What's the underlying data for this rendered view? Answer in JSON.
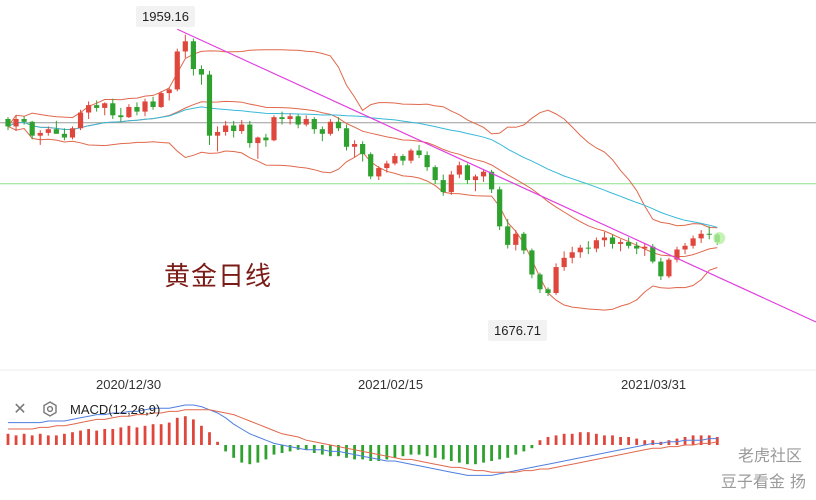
{
  "title": "黄金日线",
  "colors": {
    "up": "#e0473c",
    "down": "#2ea12e",
    "band": "#e0684c",
    "ma": "#36b9d8",
    "trend": "#e040e0",
    "dif": "#4f7fe0",
    "dea": "#e0684c"
  },
  "annotations": {
    "high": "1959.16",
    "low": "1676.71"
  },
  "indicator": {
    "label": "MACD(12,26,9)",
    "close_icon": "close-icon",
    "settings_icon": "gear-icon"
  },
  "watermark": {
    "line1": "老虎社区",
    "line2": "豆子看金 扬"
  },
  "chart_data": {
    "type": "candlestick",
    "title": "黄金日线",
    "x_ticks": [
      "2020/12/30",
      "2021/02/15",
      "2021/03/31"
    ],
    "price_annotations": [
      {
        "label": "1959.16",
        "value": 1959.16
      },
      {
        "label": "1676.71",
        "value": 1676.71
      }
    ],
    "horizontal_lines": [
      1864,
      1798
    ],
    "ylim": [
      1640,
      1975
    ],
    "candles": [
      [
        1868,
        1870,
        1856,
        1860
      ],
      [
        1860,
        1872,
        1855,
        1868
      ],
      [
        1868,
        1871,
        1862,
        1865
      ],
      [
        1865,
        1866,
        1846,
        1850
      ],
      [
        1850,
        1856,
        1840,
        1853
      ],
      [
        1853,
        1860,
        1850,
        1857
      ],
      [
        1857,
        1866,
        1854,
        1852
      ],
      [
        1852,
        1858,
        1845,
        1848
      ],
      [
        1848,
        1860,
        1846,
        1858
      ],
      [
        1858,
        1878,
        1856,
        1875
      ],
      [
        1875,
        1887,
        1868,
        1883
      ],
      [
        1883,
        1888,
        1876,
        1880
      ],
      [
        1880,
        1886,
        1872,
        1885
      ],
      [
        1885,
        1890,
        1868,
        1872
      ],
      [
        1872,
        1880,
        1865,
        1870
      ],
      [
        1870,
        1884,
        1869,
        1881
      ],
      [
        1881,
        1886,
        1872,
        1876
      ],
      [
        1876,
        1890,
        1871,
        1887
      ],
      [
        1887,
        1892,
        1878,
        1881
      ],
      [
        1881,
        1898,
        1880,
        1896
      ],
      [
        1896,
        1902,
        1888,
        1900
      ],
      [
        1900,
        1944,
        1898,
        1941
      ],
      [
        1941,
        1959.16,
        1934,
        1952
      ],
      [
        1952,
        1955,
        1915,
        1922
      ],
      [
        1922,
        1926,
        1905,
        1916
      ],
      [
        1916,
        1920,
        1840,
        1850
      ],
      [
        1850,
        1860,
        1833,
        1854
      ],
      [
        1854,
        1866,
        1850,
        1861
      ],
      [
        1861,
        1866,
        1848,
        1855
      ],
      [
        1855,
        1867,
        1852,
        1862
      ],
      [
        1862,
        1866,
        1837,
        1842
      ],
      [
        1842,
        1849,
        1825,
        1848
      ],
      [
        1848,
        1852,
        1838,
        1845
      ],
      [
        1845,
        1872,
        1844,
        1870
      ],
      [
        1870,
        1876,
        1862,
        1868
      ],
      [
        1868,
        1874,
        1862,
        1871
      ],
      [
        1871,
        1873,
        1858,
        1862
      ],
      [
        1862,
        1872,
        1860,
        1868
      ],
      [
        1868,
        1870,
        1852,
        1857
      ],
      [
        1857,
        1860,
        1844,
        1852
      ],
      [
        1852,
        1868,
        1850,
        1865
      ],
      [
        1865,
        1870,
        1855,
        1858
      ],
      [
        1858,
        1862,
        1834,
        1838
      ],
      [
        1838,
        1845,
        1827,
        1841
      ],
      [
        1841,
        1844,
        1822,
        1830
      ],
      [
        1830,
        1832,
        1803,
        1806
      ],
      [
        1806,
        1817,
        1802,
        1815
      ],
      [
        1815,
        1823,
        1810,
        1820
      ],
      [
        1820,
        1831,
        1818,
        1828
      ],
      [
        1828,
        1830,
        1818,
        1823
      ],
      [
        1823,
        1836,
        1820,
        1834
      ],
      [
        1834,
        1840,
        1826,
        1829
      ],
      [
        1829,
        1833,
        1812,
        1816
      ],
      [
        1816,
        1818,
        1798,
        1802
      ],
      [
        1802,
        1808,
        1785,
        1789
      ],
      [
        1789,
        1812,
        1786,
        1808
      ],
      [
        1808,
        1822,
        1804,
        1818
      ],
      [
        1818,
        1820,
        1798,
        1802
      ],
      [
        1802,
        1808,
        1790,
        1806
      ],
      [
        1806,
        1814,
        1800,
        1811
      ],
      [
        1811,
        1813,
        1788,
        1792
      ],
      [
        1792,
        1795,
        1748,
        1752
      ],
      [
        1752,
        1760,
        1728,
        1732
      ],
      [
        1732,
        1748,
        1726,
        1744
      ],
      [
        1744,
        1746,
        1722,
        1726
      ],
      [
        1726,
        1728,
        1696,
        1700
      ],
      [
        1700,
        1702,
        1680,
        1684
      ],
      [
        1684,
        1686,
        1676.71,
        1680
      ],
      [
        1680,
        1712,
        1678,
        1708
      ],
      [
        1708,
        1725,
        1704,
        1718
      ],
      [
        1718,
        1730,
        1712,
        1724
      ],
      [
        1724,
        1732,
        1718,
        1729
      ],
      [
        1729,
        1736,
        1722,
        1728
      ],
      [
        1728,
        1740,
        1724,
        1737
      ],
      [
        1737,
        1746,
        1730,
        1740
      ],
      [
        1740,
        1743,
        1728,
        1733
      ],
      [
        1733,
        1738,
        1725,
        1735
      ],
      [
        1735,
        1740,
        1728,
        1731
      ],
      [
        1731,
        1735,
        1722,
        1728
      ],
      [
        1728,
        1734,
        1720,
        1730
      ],
      [
        1730,
        1733,
        1712,
        1714
      ],
      [
        1714,
        1718,
        1694,
        1698
      ],
      [
        1698,
        1718,
        1696,
        1716
      ],
      [
        1716,
        1730,
        1713,
        1727
      ],
      [
        1727,
        1734,
        1722,
        1731
      ],
      [
        1731,
        1742,
        1728,
        1739
      ],
      [
        1739,
        1748,
        1734,
        1744
      ],
      [
        1744,
        1752,
        1738,
        1743
      ],
      [
        1743,
        1745,
        1732,
        1735
      ]
    ],
    "indicator": {
      "name": "MACD(12,26,9)",
      "histogram": [
        7,
        6,
        7,
        6,
        7,
        6,
        6,
        7,
        8,
        9,
        10,
        9,
        10,
        10,
        11,
        12,
        11,
        12,
        13,
        13,
        14,
        17,
        18,
        16,
        12,
        8,
        2,
        -4,
        -8,
        -11,
        -12,
        -11,
        -9,
        -6,
        -5,
        -4,
        -3,
        -3,
        -5,
        -6,
        -7,
        -7,
        -8,
        -9,
        -9,
        -10,
        -10,
        -9,
        -8,
        -7,
        -6,
        -6,
        -7,
        -8,
        -9,
        -10,
        -11,
        -12,
        -12,
        -11,
        -10,
        -9,
        -8,
        -6,
        -4,
        -2,
        3,
        5,
        6,
        7,
        7,
        8,
        8,
        7,
        6,
        6,
        5,
        5,
        4,
        3,
        3,
        2,
        3,
        4,
        5,
        6,
        6,
        6,
        5
      ],
      "dif": [
        14,
        14,
        14,
        14,
        14,
        15,
        15,
        15,
        16,
        17,
        18,
        19,
        19,
        20,
        20,
        21,
        21,
        22,
        23,
        23,
        23,
        24,
        25,
        25,
        24,
        22,
        20,
        17,
        13,
        10,
        7,
        5,
        3,
        1,
        0,
        -1,
        -2,
        -3,
        -3,
        -3,
        -4,
        -4,
        -5,
        -6,
        -7,
        -8,
        -9,
        -10,
        -10,
        -11,
        -12,
        -13,
        -14,
        -15,
        -16,
        -17,
        -18,
        -19,
        -19,
        -19,
        -19,
        -18,
        -17,
        -16,
        -15,
        -14,
        -13,
        -12,
        -11,
        -10,
        -9,
        -8,
        -7,
        -6,
        -5,
        -4,
        -3,
        -2,
        -1,
        0,
        1,
        1,
        2,
        2,
        3,
        3,
        3,
        4,
        4
      ],
      "dea": [
        10,
        10,
        10,
        10,
        11,
        11,
        12,
        12,
        13,
        14,
        15,
        16,
        16,
        17,
        18,
        18,
        19,
        19,
        20,
        20,
        21,
        21,
        22,
        22,
        22,
        22,
        21,
        20,
        19,
        17,
        15,
        13,
        11,
        9,
        7,
        6,
        5,
        3,
        2,
        1,
        0,
        -1,
        -2,
        -3,
        -4,
        -5,
        -6,
        -7,
        -8,
        -9,
        -9,
        -10,
        -11,
        -12,
        -13,
        -14,
        -14,
        -15,
        -16,
        -16,
        -17,
        -17,
        -17,
        -17,
        -16,
        -16,
        -15,
        -15,
        -14,
        -13,
        -12,
        -11,
        -10,
        -9,
        -8,
        -7,
        -6,
        -5,
        -4,
        -3,
        -2,
        -2,
        -1,
        -1,
        0,
        0,
        1,
        1,
        2
      ]
    }
  }
}
